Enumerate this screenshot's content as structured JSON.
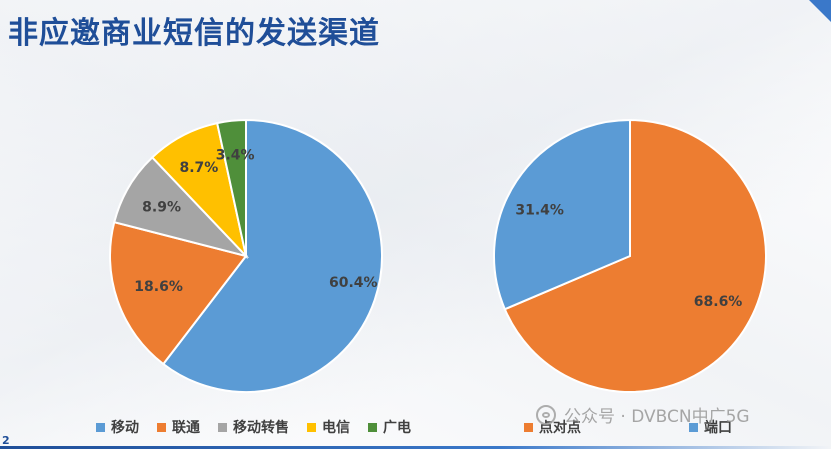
{
  "title": "非应邀商业短信的发送渠道",
  "page_number": "2",
  "watermark": "公众号 · DVBCN中广5G",
  "chart_data": [
    {
      "type": "pie",
      "categories": [
        "移动",
        "联通",
        "移动转售",
        "电信",
        "广电"
      ],
      "values": [
        60.4,
        18.6,
        8.9,
        8.7,
        3.4
      ],
      "data_labels": [
        "60.4%",
        "18.6%",
        "8.9%",
        "8.7%",
        "3.4%"
      ],
      "colors": [
        "#5b9bd5",
        "#ed7d31",
        "#a5a5a5",
        "#ffc000",
        "#4f8f3a"
      ],
      "start_angle_deg": 0,
      "direction": "clockwise",
      "legend_position": "bottom"
    },
    {
      "type": "pie",
      "categories": [
        "点对点",
        "端口"
      ],
      "values": [
        68.6,
        31.4
      ],
      "data_labels": [
        "68.6%",
        "31.4%"
      ],
      "colors": [
        "#ed7d31",
        "#5b9bd5"
      ],
      "start_angle_deg": 0,
      "direction": "clockwise",
      "legend_position": "bottom"
    }
  ]
}
